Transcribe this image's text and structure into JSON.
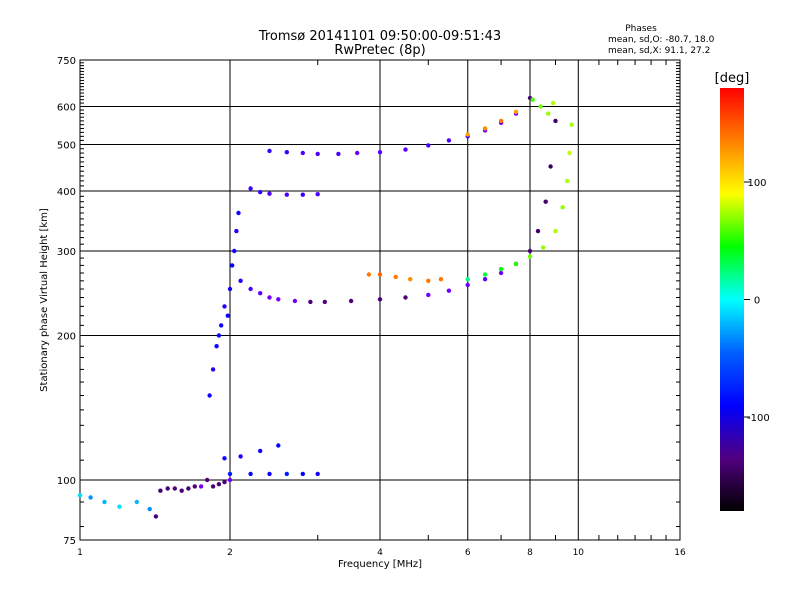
{
  "chart_data": {
    "type": "scatter",
    "title": "Tromsø 20141101 09:50:00-09:51:43",
    "subtitle": "RwPretec (8p)",
    "xlabel": "Frequency [MHz]",
    "ylabel": "Stationary phase Virtual Height [km]",
    "x_scale": "log",
    "y_scale": "log",
    "xlim": [
      1,
      16
    ],
    "ylim": [
      75,
      750
    ],
    "x_ticks": [
      1,
      2,
      4,
      6,
      8,
      10,
      16
    ],
    "y_ticks": [
      75,
      100,
      200,
      300,
      400,
      500,
      600,
      750
    ],
    "grid": true,
    "stats": {
      "heading": "Phases",
      "line_o": "mean, sd,O: -80.7, 18.0",
      "line_x": "mean, sd,X:  91.1, 27.2"
    },
    "colorbar": {
      "label": "[deg]",
      "range": [
        -180,
        180
      ],
      "ticks": [
        100,
        0,
        -100
      ],
      "colors": [
        "#ff0000",
        "#ff8000",
        "#ffff00",
        "#00ff00",
        "#00ffff",
        "#0060ff",
        "#0000ff",
        "#500080",
        "#000000"
      ]
    },
    "series": [
      {
        "x": [
          1.0,
          1.05,
          1.12,
          1.2,
          1.3,
          1.38,
          1.42,
          1.45,
          1.5,
          1.55,
          1.6,
          1.65,
          1.7,
          1.75,
          1.8,
          1.85,
          1.9,
          1.95,
          2.0
        ],
        "y": [
          93,
          92,
          90,
          88,
          90,
          87,
          84,
          95,
          96,
          96,
          95,
          96,
          97,
          97,
          100,
          97,
          98,
          99,
          100
        ],
        "phase": [
          -20,
          -40,
          -30,
          -20,
          -30,
          -40,
          -110,
          -120,
          -115,
          -110,
          -110,
          -115,
          -110,
          -105,
          -110,
          -115,
          -110,
          -110,
          -105
        ]
      },
      {
        "x": [
          1.82,
          1.85,
          1.88,
          1.9,
          1.92,
          1.95,
          1.98,
          2.0,
          2.02,
          2.04,
          2.06,
          2.08
        ],
        "y": [
          150,
          170,
          190,
          200,
          210,
          230,
          220,
          250,
          280,
          300,
          330,
          360
        ],
        "phase": [
          -80,
          -85,
          -80,
          -75,
          -80,
          -85,
          -80,
          -80,
          -75,
          -80,
          -85,
          -80
        ]
      },
      {
        "x": [
          2.1,
          2.2,
          2.3,
          2.4,
          2.5,
          2.7,
          2.9,
          3.1,
          3.5,
          4.0,
          4.5,
          5.0,
          5.5,
          6.0,
          6.5,
          7.0,
          7.5,
          8.0,
          8.3,
          8.6,
          8.8,
          9.0
        ],
        "y": [
          260,
          250,
          245,
          240,
          238,
          236,
          235,
          235,
          236,
          238,
          240,
          243,
          248,
          255,
          262,
          270,
          282,
          300,
          330,
          380,
          450,
          560
        ],
        "phase": [
          -85,
          -95,
          -100,
          -105,
          -105,
          -105,
          -110,
          -110,
          -110,
          -110,
          -110,
          -105,
          -105,
          -100,
          -100,
          -100,
          -110,
          -115,
          -120,
          -120,
          -125,
          -120
        ]
      },
      {
        "x": [
          3.8,
          4.0,
          4.3,
          4.6,
          5.0,
          5.3
        ],
        "y": [
          268,
          268,
          265,
          262,
          260,
          262
        ],
        "phase": [
          150,
          155,
          150,
          145,
          150,
          150
        ]
      },
      {
        "x": [
          6.0,
          6.5,
          7.0,
          7.5,
          8.0,
          8.5,
          9.0,
          9.3,
          9.5,
          9.6,
          9.7
        ],
        "y": [
          262,
          268,
          275,
          282,
          292,
          305,
          330,
          370,
          420,
          480,
          550
        ],
        "phase": [
          20,
          40,
          50,
          60,
          80,
          90,
          95,
          90,
          95,
          100,
          95
        ]
      },
      {
        "x": [
          2.4,
          2.6,
          2.8,
          3.0,
          3.3,
          3.6,
          4.0,
          4.5,
          5.0,
          5.5,
          6.0,
          6.5,
          7.0,
          7.5,
          8.0
        ],
        "y": [
          485,
          482,
          480,
          478,
          478,
          480,
          482,
          488,
          498,
          510,
          520,
          535,
          555,
          580,
          625
        ],
        "phase": [
          -90,
          -90,
          -95,
          -95,
          -95,
          -100,
          -100,
          -100,
          -95,
          -95,
          -95,
          -100,
          -100,
          -105,
          -110
        ]
      },
      {
        "x": [
          8.1,
          8.4,
          8.7,
          8.9
        ],
        "y": [
          620,
          600,
          580,
          610
        ],
        "phase": [
          70,
          80,
          90,
          95
        ]
      },
      {
        "x": [
          6.0,
          6.5,
          7.0,
          7.5
        ],
        "y": [
          525,
          540,
          560,
          585
        ],
        "phase": [
          140,
          145,
          150,
          140
        ]
      },
      {
        "x": [
          2.2,
          2.3,
          2.4,
          2.6,
          2.8,
          3.0
        ],
        "y": [
          405,
          398,
          395,
          393,
          393,
          394
        ],
        "phase": [
          -90,
          -90,
          -95,
          -95,
          -90,
          -95
        ]
      },
      {
        "x": [
          2.0,
          2.2,
          2.4,
          2.6,
          2.8,
          3.0
        ],
        "y": [
          103,
          103,
          103,
          103,
          103,
          103
        ],
        "phase": [
          -70,
          -75,
          -80,
          -70,
          -75,
          -80
        ]
      },
      {
        "x": [
          1.95,
          2.1,
          2.3,
          2.5
        ],
        "y": [
          111,
          112,
          115,
          118
        ],
        "phase": [
          -80,
          -85,
          -80,
          -75
        ]
      }
    ]
  }
}
